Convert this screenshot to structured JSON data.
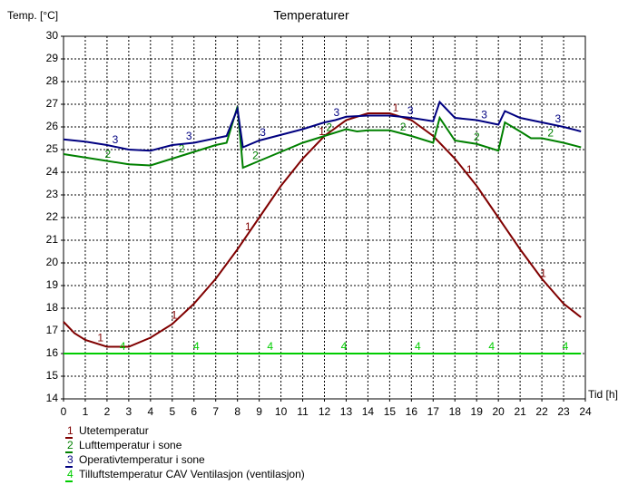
{
  "chart_data": {
    "type": "line",
    "title": "Temperaturer",
    "y_label": "Temp. [°C]",
    "x_label": "Tid [h]",
    "xlim": [
      0,
      24
    ],
    "xticks": [
      0,
      1,
      2,
      3,
      4,
      5,
      6,
      7,
      8,
      9,
      10,
      11,
      12,
      13,
      14,
      15,
      16,
      17,
      18,
      19,
      20,
      21,
      22,
      23,
      24
    ],
    "ylim": [
      14,
      30
    ],
    "yticks": [
      14,
      15,
      16,
      17,
      18,
      19,
      20,
      21,
      22,
      23,
      24,
      25,
      26,
      27,
      28,
      29,
      30
    ],
    "grid": true,
    "series": [
      {
        "name": "Utetemperatur",
        "marker": "1",
        "color": "#800000",
        "x": [
          0,
          0.5,
          1,
          2,
          3,
          4,
          5,
          6,
          7,
          8,
          9,
          10,
          11,
          12,
          13,
          14,
          15,
          16,
          17,
          18,
          19,
          20,
          21,
          22,
          23,
          23.8
        ],
        "values": [
          17.4,
          16.9,
          16.6,
          16.3,
          16.3,
          16.7,
          17.3,
          18.2,
          19.3,
          20.6,
          22.0,
          23.4,
          24.6,
          25.6,
          26.3,
          26.6,
          26.6,
          26.3,
          25.6,
          24.6,
          23.4,
          22.0,
          20.6,
          19.3,
          18.2,
          17.6
        ]
      },
      {
        "name": "Lufttemperatur i sone",
        "marker": "2",
        "color": "#008000",
        "x": [
          0,
          1,
          2,
          3,
          4,
          5,
          6,
          7,
          7.5,
          8,
          8.25,
          9,
          10,
          11,
          12,
          13,
          13.5,
          14,
          15,
          16,
          17,
          17.3,
          18,
          19,
          20,
          20.3,
          21,
          21.5,
          22,
          23,
          23.8
        ],
        "values": [
          24.8,
          24.65,
          24.5,
          24.35,
          24.3,
          24.6,
          24.9,
          25.2,
          25.3,
          26.9,
          24.2,
          24.5,
          24.9,
          25.3,
          25.6,
          25.9,
          25.8,
          25.85,
          25.85,
          25.6,
          25.3,
          26.4,
          25.4,
          25.25,
          24.95,
          26.2,
          25.8,
          25.5,
          25.5,
          25.3,
          25.1
        ]
      },
      {
        "name": "Operativtemperatur i sone",
        "marker": "3",
        "color": "#000080",
        "x": [
          0,
          1,
          2,
          3,
          4,
          5,
          6,
          7,
          7.5,
          8,
          8.25,
          9,
          10,
          11,
          12,
          12.5,
          13,
          14,
          15,
          16,
          17,
          17.3,
          18,
          19,
          20,
          20.3,
          21,
          22,
          23,
          23.8
        ],
        "values": [
          25.45,
          25.35,
          25.2,
          25.0,
          24.95,
          25.2,
          25.3,
          25.5,
          25.6,
          26.8,
          25.1,
          25.4,
          25.65,
          25.9,
          26.2,
          26.3,
          26.45,
          26.5,
          26.5,
          26.4,
          26.25,
          27.1,
          26.4,
          26.3,
          26.1,
          26.7,
          26.4,
          26.2,
          26.0,
          25.8
        ]
      },
      {
        "name": "Tilluftstemperatur CAV Ventilasjon (ventilasjon)",
        "marker": "4",
        "color": "#00cc00",
        "x": [
          0,
          23.8
        ],
        "values": [
          16,
          16
        ]
      }
    ]
  }
}
